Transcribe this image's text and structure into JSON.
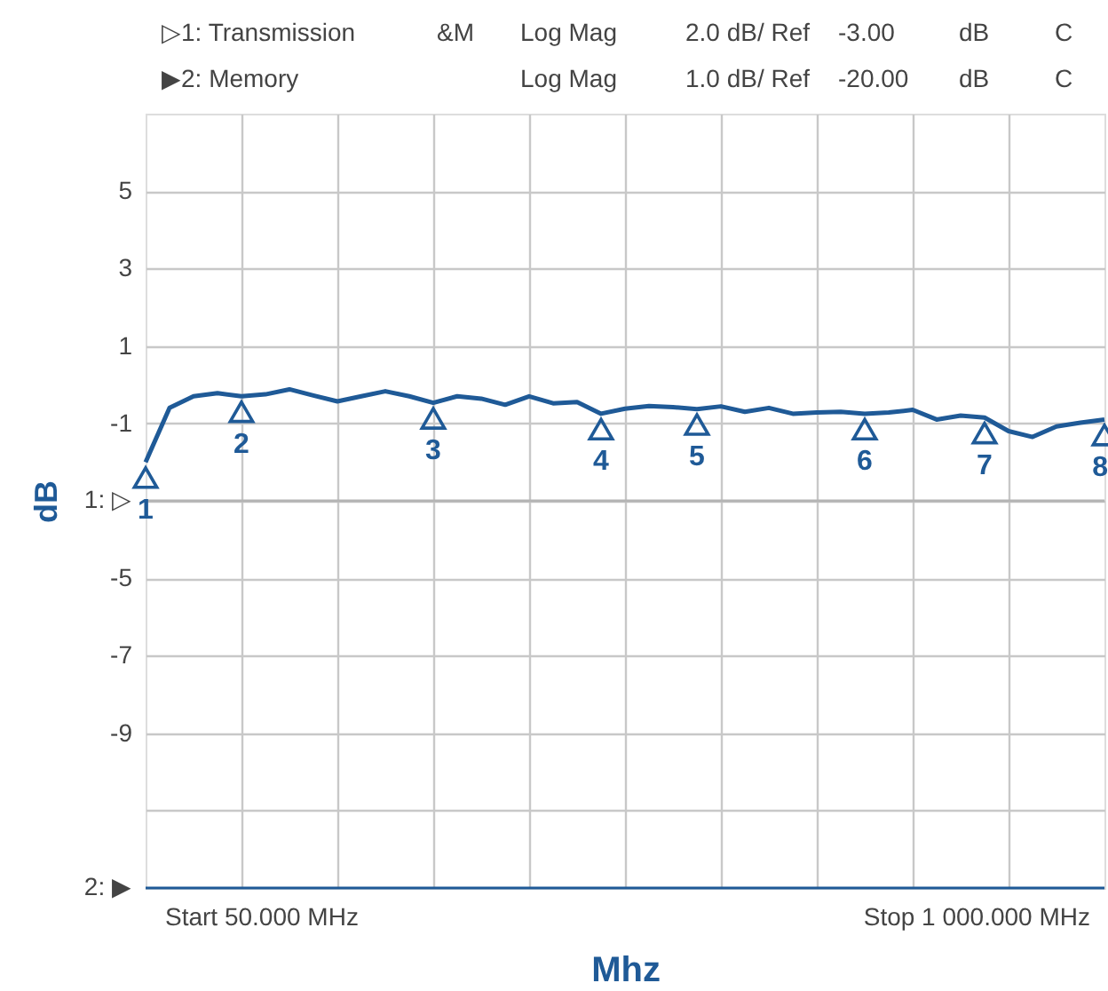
{
  "chart_data": {
    "type": "line",
    "xlabel": "Mhz",
    "ylabel": "dB",
    "annotations": [
      "▷1: Transmission",
      "&M",
      "Log Mag",
      "2.0 dB/ Ref",
      "-3.00",
      "dB",
      "C",
      "▶2: Memory",
      "Log Mag",
      "1.0 dB/ Ref",
      "-20.00",
      "dB",
      "C",
      "Start 50.000 MHz",
      "Stop 1 000.000 MHz",
      "1",
      "2",
      "3",
      "4",
      "5",
      "6",
      "7",
      "8"
    ],
    "categories": [
      null,
      null,
      null,
      null,
      null,
      null,
      null,
      null,
      null,
      null,
      null,
      null,
      null,
      null,
      null,
      null,
      null,
      null,
      null,
      null,
      null,
      null,
      null,
      null,
      null,
      null,
      null,
      null,
      null,
      null,
      null,
      null,
      null,
      null,
      null,
      null,
      null,
      null,
      null,
      null,
      null
    ],
    "series": [
      {
        "color": "#1f5a97",
        "values": [
          -2.0,
          -0.6,
          -0.3,
          -0.22,
          -0.3,
          -0.25,
          -0.12,
          -0.28,
          -0.43,
          -0.3,
          -0.17,
          -0.3,
          -0.47,
          -0.3,
          -0.36,
          -0.52,
          -0.3,
          -0.48,
          -0.45,
          -0.75,
          -0.62,
          -0.55,
          -0.58,
          -0.63,
          -0.56,
          -0.7,
          -0.6,
          -0.75,
          -0.72,
          -0.7,
          -0.75,
          -0.72,
          -0.65,
          -0.9,
          -0.8,
          -0.85,
          -1.2,
          -1.35,
          -1.08,
          -0.98,
          -0.9
        ]
      },
      {
        "type": "scatter",
        "color": "#1f5a97",
        "marker": "triangle",
        "values": [
          -2.4,
          null,
          null,
          null,
          -0.7,
          null,
          null,
          null,
          null,
          null,
          null,
          null,
          -0.87,
          null,
          null,
          null,
          null,
          null,
          null,
          -1.15,
          null,
          null,
          null,
          -1.03,
          null,
          null,
          null,
          null,
          null,
          null,
          -1.15,
          null,
          null,
          null,
          null,
          -1.25,
          null,
          null,
          null,
          null,
          -1.3
        ]
      }
    ],
    "ylim": [
      -13,
      7
    ],
    "yticks": [
      5,
      3,
      1,
      -1,
      {
        "value": -3,
        "label": null
      },
      -5,
      -7,
      -9,
      {
        "value": -11,
        "label": null
      }
    ],
    "ref_lines": [
      {
        "axis": "y",
        "value": -3,
        "label": "1: ▷",
        "color": "#b4b4b4"
      },
      {
        "axis": "y",
        "value": -13,
        "label": "2: ▶",
        "color": "#1f5a97"
      }
    ],
    "grid": true,
    "marker": "none",
    "line_style": "solid"
  }
}
